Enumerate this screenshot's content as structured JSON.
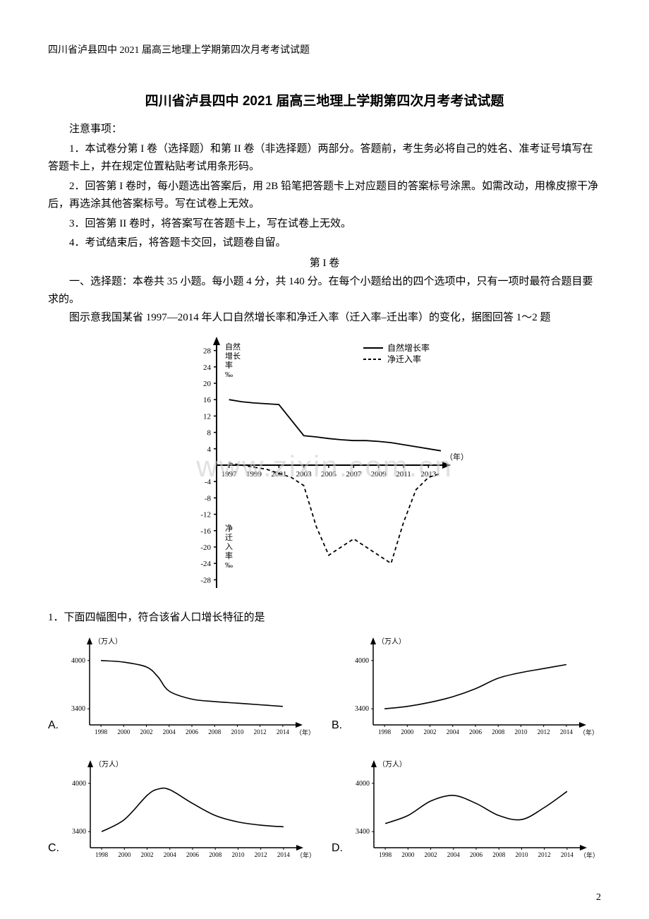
{
  "header": "四川省泸县四中 2021 届高三地理上学期第四次月考考试试题",
  "title": "四川省泸县四中 2021 届高三地理上学期第四次月考考试试题",
  "notice_label": "注意事项：",
  "notices": [
    "1．本试卷分第 I 卷（选择题）和第 II 卷（非选择题）两部分。答题前，考生务必将自己的姓名、准考证号填写在答题卡上，并在规定位置粘贴考试用条形码。",
    "2．回答第 I 卷时，每小题选出答案后，用 2B 铅笔把答题卡上对应题目的答案标号涂黑。如需改动，用橡皮擦干净后，再选涂其他答案标号。写在试卷上无效。",
    "3．回答第 II 卷时，将答案写在答题卡上，写在试卷上无效。",
    "4．考试结束后，将答题卡交回，试题卷自留。"
  ],
  "section_label": "第 I 卷",
  "section1": "一、选择题：本卷共 35 小题。每小题 4 分，共 140 分。在每个小题给出的四个选项中，只有一项时最符合题目要求的。",
  "intro": "图示意我国某省 1997—2014 年人口自然增长率和净迁入率（迁入率–迁出率）的变化，据图回答 1～2 题",
  "watermark": "www.zixin.com.cn",
  "main_chart": {
    "type": "line",
    "y_axis_top_label": "自然\n增长\n率\n‰",
    "y_axis_bottom_label": "净\n迁\n入\n率\n‰",
    "x_axis_label": "（年）",
    "legend": [
      "自然增长率",
      "净迁入率"
    ],
    "legend_styles": [
      "solid",
      "dashed"
    ],
    "x_ticks": [
      1997,
      1999,
      2001,
      2003,
      2005,
      2007,
      2009,
      2011,
      2013
    ],
    "y_ticks": [
      -28,
      -24,
      -20,
      -16,
      -12,
      -8,
      -4,
      4,
      8,
      12,
      16,
      20,
      24,
      28
    ],
    "ylim": [
      -30,
      30
    ],
    "xlim": [
      1996,
      2014
    ],
    "series": {
      "natural_growth": {
        "color": "#000000",
        "style": "solid",
        "width": 1.8,
        "points": [
          [
            1997,
            16
          ],
          [
            1998,
            15.5
          ],
          [
            1999,
            15.2
          ],
          [
            2000,
            15
          ],
          [
            2001,
            14.8
          ],
          [
            2002,
            11
          ],
          [
            2003,
            7.2
          ],
          [
            2004,
            6.9
          ],
          [
            2005,
            6.5
          ],
          [
            2006,
            6.2
          ],
          [
            2007,
            6
          ],
          [
            2008,
            6
          ],
          [
            2009,
            5.8
          ],
          [
            2010,
            5.5
          ],
          [
            2011,
            5
          ],
          [
            2012,
            4.5
          ],
          [
            2013,
            4
          ],
          [
            2014,
            3.5
          ]
        ]
      },
      "net_migration": {
        "color": "#000000",
        "style": "dashed",
        "width": 1.8,
        "points": [
          [
            1997,
            0.5
          ],
          [
            1998,
            0
          ],
          [
            1999,
            -0.5
          ],
          [
            2000,
            -1
          ],
          [
            2001,
            -2
          ],
          [
            2002,
            -3
          ],
          [
            2003,
            -5
          ],
          [
            2004,
            -15
          ],
          [
            2005,
            -22
          ],
          [
            2006,
            -20
          ],
          [
            2007,
            -18
          ],
          [
            2008,
            -20
          ],
          [
            2009,
            -22
          ],
          [
            2010,
            -24
          ],
          [
            2011,
            -14
          ],
          [
            2012,
            -6
          ],
          [
            2013,
            -3
          ],
          [
            2014,
            -2
          ]
        ]
      }
    },
    "background_color": "#ffffff",
    "axis_color": "#000000"
  },
  "question1": "1．下面四幅图中，符合该省人口增长特征的是",
  "small_charts": {
    "y_label": "（万人）",
    "x_label": "（年）",
    "y_ticks": [
      3400,
      4000
    ],
    "x_ticks": [
      1998,
      2000,
      2002,
      2004,
      2006,
      2008,
      2010,
      2012,
      2014
    ],
    "ylim": [
      3200,
      4200
    ],
    "xlim": [
      1997,
      2015
    ],
    "line_color": "#000000",
    "line_width": 1.6,
    "axis_color": "#000000",
    "options": {
      "A": {
        "points": [
          [
            1998,
            4000
          ],
          [
            2000,
            3980
          ],
          [
            2002,
            3920
          ],
          [
            2003,
            3800
          ],
          [
            2004,
            3620
          ],
          [
            2006,
            3520
          ],
          [
            2008,
            3490
          ],
          [
            2010,
            3470
          ],
          [
            2012,
            3450
          ],
          [
            2014,
            3430
          ]
        ]
      },
      "B": {
        "points": [
          [
            1998,
            3400
          ],
          [
            2000,
            3430
          ],
          [
            2002,
            3480
          ],
          [
            2004,
            3550
          ],
          [
            2006,
            3650
          ],
          [
            2008,
            3780
          ],
          [
            2010,
            3850
          ],
          [
            2012,
            3900
          ],
          [
            2014,
            3950
          ]
        ]
      },
      "C": {
        "points": [
          [
            1998,
            3400
          ],
          [
            2000,
            3550
          ],
          [
            2002,
            3850
          ],
          [
            2003,
            3930
          ],
          [
            2004,
            3920
          ],
          [
            2006,
            3750
          ],
          [
            2008,
            3600
          ],
          [
            2010,
            3520
          ],
          [
            2012,
            3480
          ],
          [
            2014,
            3460
          ]
        ]
      },
      "D": {
        "points": [
          [
            1998,
            3500
          ],
          [
            2000,
            3600
          ],
          [
            2002,
            3780
          ],
          [
            2004,
            3850
          ],
          [
            2006,
            3750
          ],
          [
            2008,
            3600
          ],
          [
            2010,
            3550
          ],
          [
            2012,
            3700
          ],
          [
            2014,
            3900
          ]
        ]
      }
    }
  },
  "page_number": "2"
}
